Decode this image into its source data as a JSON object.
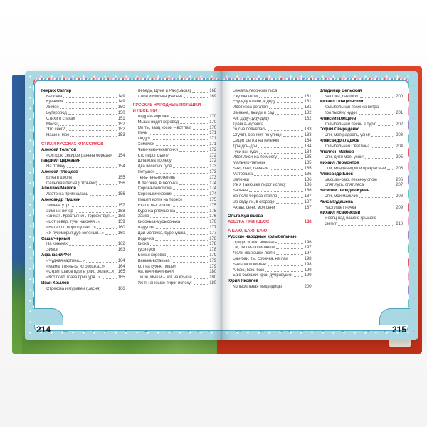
{
  "book": {
    "left_page_number": "214",
    "right_page_number": "215",
    "colors": {
      "section_header_red": "#e6394f",
      "page_margin_blue": "#a9d8e3",
      "cover_red": "#d63a22",
      "spine_blue": "#2e5f9c",
      "cover_green": "#67a33f"
    },
    "columns": {
      "left1": [
        {
          "k": "author",
          "t": "Генрих Сапгир"
        },
        {
          "k": "entry",
          "t": "Бабочка",
          "p": "149"
        },
        {
          "k": "entry",
          "t": "Кузнечик",
          "p": "149"
        },
        {
          "k": "entry",
          "t": "Лимон",
          "p": "150"
        },
        {
          "k": "entry",
          "t": "Бутерброд",
          "p": "150"
        },
        {
          "k": "entry",
          "t": "Стихи о стихах",
          "p": "151"
        },
        {
          "k": "entry",
          "t": "Месяц",
          "p": "152"
        },
        {
          "k": "entry",
          "t": "Это снег?",
          "p": "152"
        },
        {
          "k": "entry",
          "t": "Наше и моё",
          "p": "153"
        },
        {
          "k": "gap"
        },
        {
          "k": "header",
          "t": "СТИХИ РУССКИХ КЛАССИКОВ"
        },
        {
          "k": "author",
          "t": "Алексей Толстой"
        },
        {
          "k": "entry",
          "t": "«Острою секирой ранена берёза»",
          "p": "154"
        },
        {
          "k": "author",
          "t": "Гавриил Державин"
        },
        {
          "k": "entry",
          "t": "На птичку",
          "p": "154"
        },
        {
          "k": "author",
          "t": "Алексей Плещеев"
        },
        {
          "k": "entry",
          "t": "Ёлка в школе",
          "p": "155"
        },
        {
          "k": "entry",
          "t": "Сельская песня (Отрывок)",
          "p": "156"
        },
        {
          "k": "author",
          "t": "Аполлон Майков"
        },
        {
          "k": "entry",
          "t": "Ласточка примчалась",
          "p": "156"
        },
        {
          "k": "author",
          "t": "Александр Пушкин"
        },
        {
          "k": "entry",
          "t": "Зимнее утро",
          "p": "157"
        },
        {
          "k": "entry",
          "t": "Зимний вечер",
          "p": "158"
        },
        {
          "k": "entry",
          "t": "«Зима!.. Крестьянин, торжествуя...»",
          "p": "159"
        },
        {
          "k": "entry",
          "t": "«Вот север, тучи нагоняя...»",
          "p": "159"
        },
        {
          "k": "entry",
          "t": "«Ветер по морю гуляет...»",
          "p": "160"
        },
        {
          "k": "entry",
          "t": "«У лукоморья дуб зелёный...»",
          "p": "160"
        },
        {
          "k": "author",
          "t": "Саша Чёрный"
        },
        {
          "k": "entry",
          "t": "На коньках",
          "p": "162"
        },
        {
          "k": "entry",
          "t": "Зимой",
          "p": "163"
        },
        {
          "k": "author",
          "t": "Афанасий Фет"
        },
        {
          "k": "entry",
          "t": "«Чудная картина...»",
          "p": "164"
        },
        {
          "k": "entry",
          "t": "«Мама! Глянь-ка из окошка...»",
          "p": "164"
        },
        {
          "k": "entry",
          "t": "«Скрип шагов вдоль улиц белых...»",
          "p": "165"
        },
        {
          "k": "entry",
          "t": "«Кот поёт, глаза прищуря...»",
          "p": "165"
        },
        {
          "k": "author",
          "t": "Иван Крылов"
        },
        {
          "k": "entry",
          "t": "Стрекоза и муравей (Басня)",
          "p": "166"
        }
      ],
      "left2": [
        {
          "k": "entry",
          "t": "Лебедь, Щука и Рак (Басня)",
          "p": "168"
        },
        {
          "k": "entry",
          "t": "Слон и Моська (Басня)",
          "p": "169"
        },
        {
          "k": "gap"
        },
        {
          "k": "header",
          "t": "РУССКИЕ НАРОДНЫЕ ПОТЕШКИ"
        },
        {
          "k": "header2",
          "t": "И ПЕСЕНКИ"
        },
        {
          "k": "entry",
          "t": "Андрей-воробей",
          "p": "170"
        },
        {
          "k": "entry",
          "t": "Мыши водят хоровод",
          "p": "170"
        },
        {
          "k": "entry",
          "t": "Ой ты, заяц косой – вот так!",
          "p": "170"
        },
        {
          "k": "entry",
          "t": "Ночь",
          "p": "171"
        },
        {
          "k": "entry",
          "t": "Федул",
          "p": "171"
        },
        {
          "k": "entry",
          "t": "Хомячок",
          "p": "171"
        },
        {
          "k": "entry",
          "t": "Чики-чики-чикалочки",
          "p": "172"
        },
        {
          "k": "entry",
          "t": "Кто пирог съел?",
          "p": "172"
        },
        {
          "k": "entry",
          "t": "Шла коза по лесу",
          "p": "172"
        },
        {
          "k": "entry",
          "t": "Два весёлых гуся",
          "p": "173"
        },
        {
          "k": "entry",
          "t": "Петушок",
          "p": "173"
        },
        {
          "k": "entry",
          "t": "Тень-тень-потетень",
          "p": "173"
        },
        {
          "k": "entry",
          "t": "В лесочке, в лесочке",
          "p": "174"
        },
        {
          "k": "entry",
          "t": "Сорока-белобока",
          "p": "174"
        },
        {
          "k": "entry",
          "t": "Серенький козлик",
          "p": "174"
        },
        {
          "k": "entry",
          "t": "Пошёл котик на торжок",
          "p": "175"
        },
        {
          "k": "entry",
          "t": "Ехали мы, ехали",
          "p": "175"
        },
        {
          "k": "entry",
          "t": "Курочка-рябушечка",
          "p": "175"
        },
        {
          "k": "entry",
          "t": "Зайка",
          "p": "176"
        },
        {
          "k": "entry",
          "t": "Кисонька-мурысонька",
          "p": "176"
        },
        {
          "k": "entry",
          "t": "Ладушки",
          "p": "177"
        },
        {
          "k": "entry",
          "t": "Дай молочка, бурёнушка",
          "p": "177"
        },
        {
          "k": "entry",
          "t": "Водичка",
          "p": "178"
        },
        {
          "k": "entry",
          "t": "Киска",
          "p": "178"
        },
        {
          "k": "entry",
          "t": "Гуси-гуси",
          "p": "178"
        },
        {
          "k": "entry",
          "t": "Божья коровка",
          "p": "179"
        },
        {
          "k": "entry",
          "t": "Ванька-встанька",
          "p": "179"
        },
        {
          "k": "entry",
          "t": "Кот на кухню пошёл",
          "p": "179"
        },
        {
          "k": "entry",
          "t": "Ай, качи-качи-качи!",
          "p": "180"
        },
        {
          "k": "entry",
          "t": "Тише, мыши – кот на крыше",
          "p": "180"
        },
        {
          "k": "entry",
          "t": "Уж я Танюшке пирог испеку!",
          "p": "180"
        }
      ],
      "right1": [
        {
          "k": "wrap",
          "t": "Бежала лесочком лиса"
        },
        {
          "k": "cont",
          "t": "с кузовочком",
          "p": "181"
        },
        {
          "k": "entry",
          "t": "Еду-еду к бабе, к деду",
          "p": "181"
        },
        {
          "k": "entry",
          "t": "Идёт коза рогатая",
          "p": "181"
        },
        {
          "k": "entry",
          "t": "Заинька, выйди в сад",
          "p": "182"
        },
        {
          "k": "entry",
          "t": "Ай, дуду-дуду-дуду",
          "p": "182"
        },
        {
          "k": "wrap",
          "t": "Травка-муравка"
        },
        {
          "k": "cont",
          "t": "со сна поднялась",
          "p": "183"
        },
        {
          "k": "entry",
          "t": "Стучит, бренчит по улице",
          "p": "183"
        },
        {
          "k": "entry",
          "t": "Сидит белка на тележке",
          "p": "184"
        },
        {
          "k": "entry",
          "t": "Дон-дон-дон",
          "p": "184"
        },
        {
          "k": "entry",
          "t": "Гуси вы, гуси",
          "p": "184"
        },
        {
          "k": "entry",
          "t": "Идёт лисичка по мосту",
          "p": "185"
        },
        {
          "k": "entry",
          "t": "Мальчик-пальчик",
          "p": "185"
        },
        {
          "k": "entry",
          "t": "Баю, баю, баиньки",
          "p": "185"
        },
        {
          "k": "entry",
          "t": "Матрёшка",
          "p": "186"
        },
        {
          "k": "entry",
          "t": "Валенки",
          "p": "186"
        },
        {
          "k": "entry",
          "t": "Уж я Танюшке пирог испеку",
          "p": "186"
        },
        {
          "k": "entry",
          "t": "Барыня",
          "p": "186"
        },
        {
          "k": "entry",
          "t": "Во поле берёза стояла",
          "p": "187"
        },
        {
          "k": "entry",
          "t": "Во саду ли, в огороде",
          "p": "187"
        },
        {
          "k": "entry",
          "t": "Ах вы, сени, мои сени",
          "p": "187"
        },
        {
          "k": "gap"
        },
        {
          "k": "author",
          "t": "Ольга Кузнецова"
        },
        {
          "k": "hentry",
          "t": "АЗБУКА ПРИНЦЕСС",
          "p": "188"
        },
        {
          "k": "gap"
        },
        {
          "k": "header",
          "t": "А БАЮ, БАЮ, БАЮ"
        },
        {
          "k": "sub",
          "t": "Русские народные колыбельные"
        },
        {
          "k": "entry",
          "t": "Приди, котик, ночевать",
          "p": "196"
        },
        {
          "k": "entry",
          "t": "Ой, люли-люли-люли!",
          "p": "197"
        },
        {
          "k": "entry",
          "t": "Люли-люлюшки-люли",
          "p": "197"
        },
        {
          "k": "entry",
          "t": "Бай-бай, ты, собачка, не лай",
          "p": "198"
        },
        {
          "k": "entry",
          "t": "Баю-баюшки-баю",
          "p": "198"
        },
        {
          "k": "entry",
          "t": "А баю, баю, баю",
          "p": "199"
        },
        {
          "k": "entry",
          "t": "Баю-баюшки, край дубравушки",
          "p": "199"
        },
        {
          "k": "author",
          "t": "Юрий Яковлев"
        },
        {
          "k": "entry",
          "t": "Колыбельная медведицы",
          "p": "200"
        }
      ],
      "right2": [
        {
          "k": "author",
          "t": "Владимир Бельский"
        },
        {
          "k": "entry",
          "t": "Баюшки, баюшки!",
          "p": "200"
        },
        {
          "k": "author",
          "t": "Михаил Пляцковский"
        },
        {
          "k": "wrap",
          "t": "Колыбельная песенка ветра"
        },
        {
          "k": "cont",
          "t": "про тысячу чудес",
          "p": "201"
        },
        {
          "k": "author",
          "t": "Алексей Плещеев"
        },
        {
          "k": "entry",
          "t": "Колыбельная песнь в бурю",
          "p": "202"
        },
        {
          "k": "author",
          "t": "София Свириденко"
        },
        {
          "k": "entry",
          "t": "Спи, моя радость, усни!",
          "p": "203"
        },
        {
          "k": "author",
          "t": "Александр Гладков"
        },
        {
          "k": "entry",
          "t": "Колыбельная Светлана",
          "p": "204"
        },
        {
          "k": "author",
          "t": "Аполлон Майков"
        },
        {
          "k": "entry",
          "t": "Спи, дитя моё, усни!",
          "p": "205"
        },
        {
          "k": "author",
          "t": "Михаил Лермонтов"
        },
        {
          "k": "entry",
          "t": "Спи, младенец мой прекрасный",
          "p": "206"
        },
        {
          "k": "author",
          "t": "Александр Блок"
        },
        {
          "k": "entry",
          "t": "Баюшки-баю, песенку спою",
          "p": "206"
        },
        {
          "k": "entry",
          "t": "Спят луга, спят леса",
          "p": "207"
        },
        {
          "k": "author",
          "t": "Василий Лебедев-Кумач"
        },
        {
          "k": "entry",
          "t": "Спи, мой мальчик",
          "p": "208"
        },
        {
          "k": "author",
          "t": "Раиса Кудашева"
        },
        {
          "k": "entry",
          "t": "Наступает ночка",
          "p": "209"
        },
        {
          "k": "author",
          "t": "Михаил Исаковский"
        },
        {
          "k": "wrap",
          "t": "Месяц над нашею крышею"
        },
        {
          "k": "cont",
          "t": "светит",
          "p": "210"
        }
      ]
    }
  }
}
